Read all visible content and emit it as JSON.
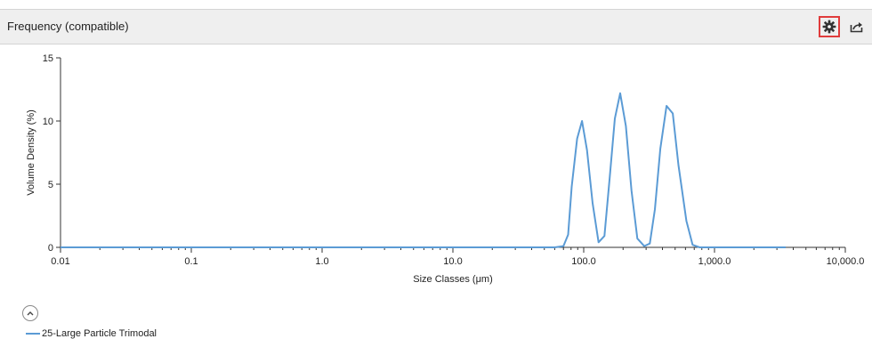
{
  "header": {
    "title": "Frequency (compatible)"
  },
  "toolbar": {
    "settings_icon": "gear-icon",
    "export_icon": "export-icon"
  },
  "legend": {
    "collapse_icon": "chevron-up-icon",
    "items": [
      {
        "label": "25-Large Particle Trimodal",
        "color": "#5b9bd5"
      }
    ]
  },
  "chart_data": {
    "type": "line",
    "xlabel": "Size Classes (μm)",
    "ylabel": "Volume Density (%)",
    "xscale": "log",
    "xlim": [
      0.01,
      10000
    ],
    "ylim": [
      0,
      15
    ],
    "x_ticks": [
      {
        "value": 0.01,
        "label": "0.01"
      },
      {
        "value": 0.1,
        "label": "0.1"
      },
      {
        "value": 1,
        "label": "1.0"
      },
      {
        "value": 10,
        "label": "10.0"
      },
      {
        "value": 100,
        "label": "100.0"
      },
      {
        "value": 1000,
        "label": "1,000.0"
      },
      {
        "value": 10000,
        "label": "10,000.0"
      }
    ],
    "y_ticks": [
      {
        "value": 0,
        "label": "0"
      },
      {
        "value": 5,
        "label": "5"
      },
      {
        "value": 10,
        "label": "10"
      },
      {
        "value": 15,
        "label": "15"
      }
    ],
    "grid": false,
    "series": [
      {
        "name": "25-Large Particle Trimodal",
        "color": "#5b9bd5",
        "x": [
          0.01,
          0.1,
          1,
          10,
          60,
          70,
          76,
          81,
          89,
          97,
          106,
          117,
          130,
          144,
          158,
          173,
          190,
          210,
          232,
          257,
          290,
          320,
          350,
          385,
          430,
          480,
          530,
          610,
          680,
          770,
          860,
          960,
          1070,
          1190,
          1320,
          1470,
          1700,
          2000,
          2500,
          3500
        ],
        "y": [
          0,
          0,
          0,
          0,
          0,
          0.1,
          1,
          4.8,
          8.6,
          10,
          7.7,
          3.5,
          0.4,
          0.9,
          5.5,
          10.2,
          12.2,
          9.6,
          4.5,
          0.7,
          0.1,
          0.3,
          3,
          7.8,
          11.2,
          10.6,
          6.5,
          2.1,
          0.2,
          0,
          0,
          0,
          0,
          0,
          0,
          0,
          0,
          0,
          0,
          0
        ]
      }
    ]
  }
}
